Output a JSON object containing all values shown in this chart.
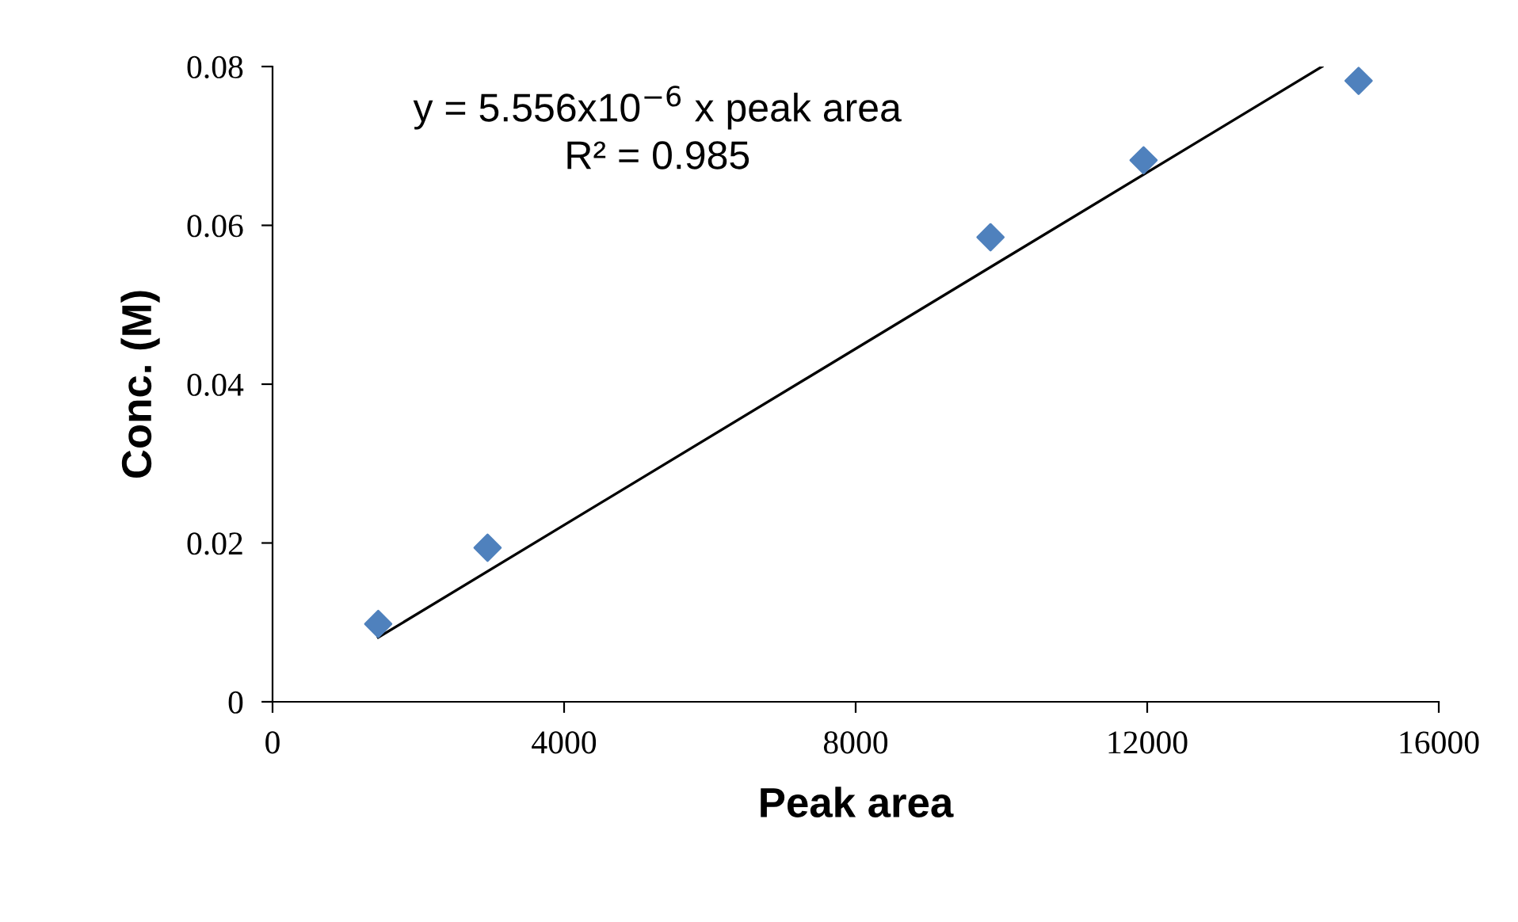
{
  "chart_data": {
    "type": "scatter",
    "xlabel": "Peak area",
    "ylabel": "Conc. (M)",
    "annotations": [
      "y = 5.556x10$^{−6}$ x peak area",
      "R² = 0.985"
    ],
    "series": [
      {
        "color": "#4f81bd",
        "marker": "diamond",
        "x": [
          1450,
          2950,
          9850,
          11950,
          14900
        ],
        "values": [
          0.0098,
          0.0194,
          0.0585,
          0.0682,
          0.0782
        ]
      },
      {
        "type": "line",
        "color": "#000000",
        "marker": "none",
        "line_style": "solid",
        "x": [
          1450,
          14400
        ],
        "values": [
          0.0081,
          0.08
        ]
      }
    ],
    "xlim": [
      0,
      16000
    ],
    "xticks": [
      0,
      4000,
      8000,
      12000,
      16000
    ],
    "ylim": [
      0,
      0.08
    ],
    "yticks": [
      0,
      0.02,
      0.04,
      0.06,
      0.08
    ],
    "grid": false,
    "legend": false
  }
}
